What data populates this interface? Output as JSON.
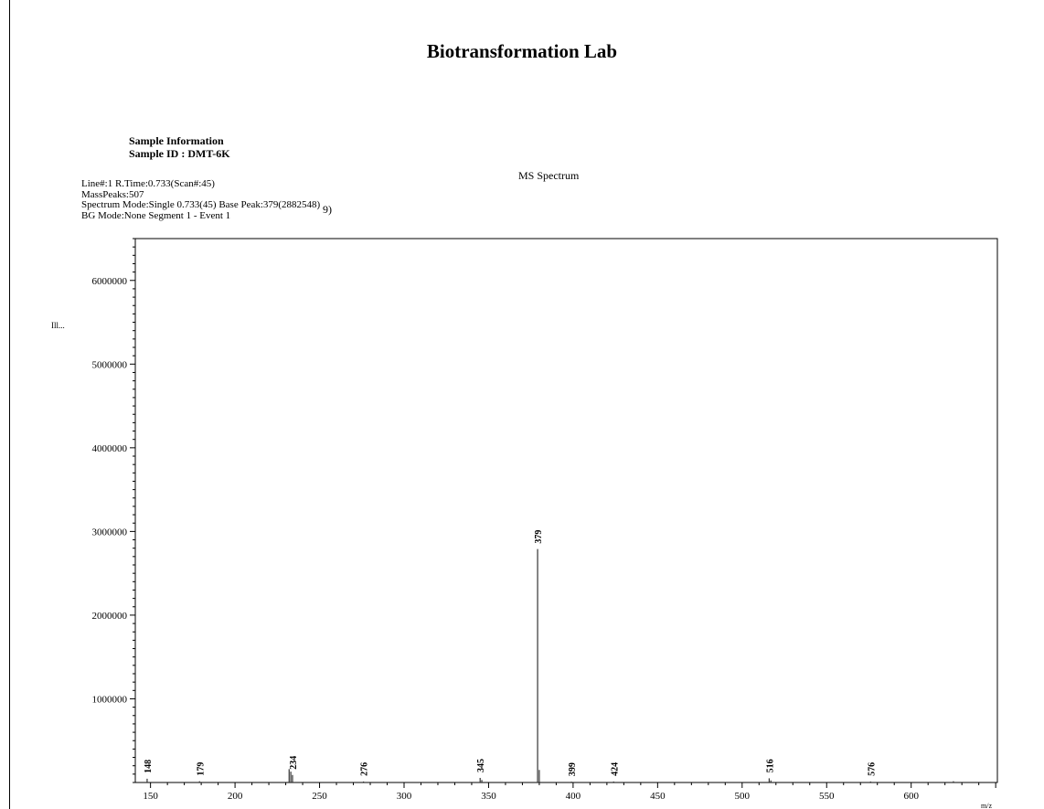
{
  "header": {
    "title": "Biotransformation Lab",
    "sample_info_label": "Sample Information",
    "sample_id": "Sample ID : DMT-6K"
  },
  "meta": {
    "line1": "Line#:1 R.Time:0.733(Scan#:45)",
    "line2": "MassPeaks:507",
    "line3": "Spectrum Mode:Single 0.733(45) Base Peak:379(2882548)",
    "line3_extra": "9)",
    "line4": "BG Mode:None Segment 1 - Event 1"
  },
  "y_axis_stray_label": "Ill...",
  "chart_data": {
    "type": "bar",
    "title": "MS Spectrum",
    "xlabel": "m/z",
    "ylabel": "",
    "xlim": [
      141,
      651
    ],
    "ylim": [
      0,
      6500000
    ],
    "x_ticks": [
      150,
      200,
      250,
      300,
      350,
      400,
      450,
      500,
      550,
      600
    ],
    "y_ticks": [
      1000000,
      2000000,
      3000000,
      4000000,
      5000000,
      6000000
    ],
    "peaks": [
      {
        "mz": 148,
        "intensity": 45000,
        "label": "148"
      },
      {
        "mz": 179,
        "intensity": 15000,
        "label": "179"
      },
      {
        "mz": 232,
        "intensity": 160000,
        "label": ""
      },
      {
        "mz": 233,
        "intensity": 130000,
        "label": ""
      },
      {
        "mz": 234,
        "intensity": 90000,
        "label": "234"
      },
      {
        "mz": 276,
        "intensity": 12000,
        "label": "276"
      },
      {
        "mz": 345,
        "intensity": 55000,
        "label": "345"
      },
      {
        "mz": 346,
        "intensity": 30000,
        "label": ""
      },
      {
        "mz": 379,
        "intensity": 2790000,
        "label": "379"
      },
      {
        "mz": 380,
        "intensity": 150000,
        "label": ""
      },
      {
        "mz": 399,
        "intensity": 10000,
        "label": "399"
      },
      {
        "mz": 424,
        "intensity": 12000,
        "label": "424"
      },
      {
        "mz": 516,
        "intensity": 50000,
        "label": "516"
      },
      {
        "mz": 517,
        "intensity": 25000,
        "label": ""
      },
      {
        "mz": 576,
        "intensity": 12000,
        "label": "576"
      },
      {
        "mz": 625,
        "intensity": 15000,
        "label": ""
      }
    ]
  }
}
